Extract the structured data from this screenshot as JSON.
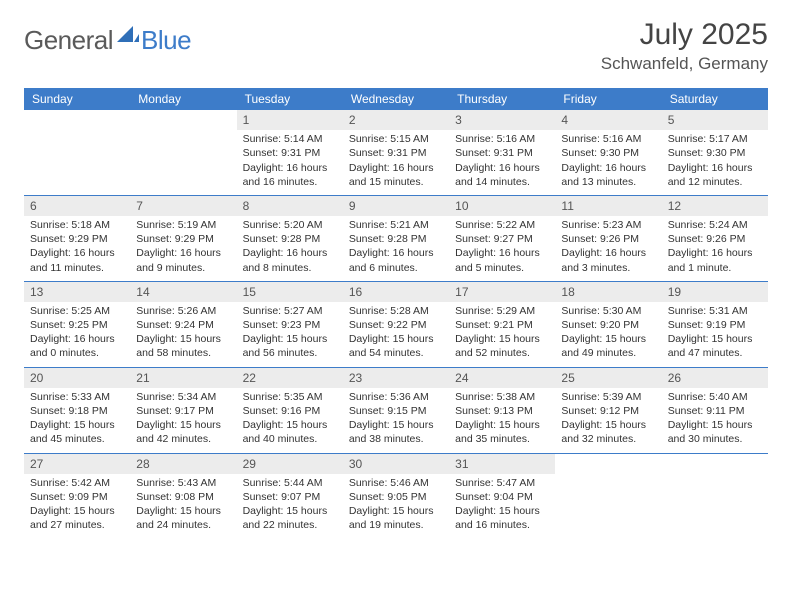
{
  "brand": {
    "part1": "General",
    "part2": "Blue"
  },
  "title": "July 2025",
  "location": "Schwanfeld, Germany",
  "colors": {
    "header_bg": "#3d7cc9",
    "header_text": "#ffffff",
    "daynum_bg": "#ececec",
    "border": "#3d7cc9",
    "text": "#333333"
  },
  "dayNames": [
    "Sunday",
    "Monday",
    "Tuesday",
    "Wednesday",
    "Thursday",
    "Friday",
    "Saturday"
  ],
  "weeks": [
    [
      null,
      null,
      {
        "n": "1",
        "sr": "5:14 AM",
        "ss": "9:31 PM",
        "dl": "16 hours and 16 minutes."
      },
      {
        "n": "2",
        "sr": "5:15 AM",
        "ss": "9:31 PM",
        "dl": "16 hours and 15 minutes."
      },
      {
        "n": "3",
        "sr": "5:16 AM",
        "ss": "9:31 PM",
        "dl": "16 hours and 14 minutes."
      },
      {
        "n": "4",
        "sr": "5:16 AM",
        "ss": "9:30 PM",
        "dl": "16 hours and 13 minutes."
      },
      {
        "n": "5",
        "sr": "5:17 AM",
        "ss": "9:30 PM",
        "dl": "16 hours and 12 minutes."
      }
    ],
    [
      {
        "n": "6",
        "sr": "5:18 AM",
        "ss": "9:29 PM",
        "dl": "16 hours and 11 minutes."
      },
      {
        "n": "7",
        "sr": "5:19 AM",
        "ss": "9:29 PM",
        "dl": "16 hours and 9 minutes."
      },
      {
        "n": "8",
        "sr": "5:20 AM",
        "ss": "9:28 PM",
        "dl": "16 hours and 8 minutes."
      },
      {
        "n": "9",
        "sr": "5:21 AM",
        "ss": "9:28 PM",
        "dl": "16 hours and 6 minutes."
      },
      {
        "n": "10",
        "sr": "5:22 AM",
        "ss": "9:27 PM",
        "dl": "16 hours and 5 minutes."
      },
      {
        "n": "11",
        "sr": "5:23 AM",
        "ss": "9:26 PM",
        "dl": "16 hours and 3 minutes."
      },
      {
        "n": "12",
        "sr": "5:24 AM",
        "ss": "9:26 PM",
        "dl": "16 hours and 1 minute."
      }
    ],
    [
      {
        "n": "13",
        "sr": "5:25 AM",
        "ss": "9:25 PM",
        "dl": "16 hours and 0 minutes."
      },
      {
        "n": "14",
        "sr": "5:26 AM",
        "ss": "9:24 PM",
        "dl": "15 hours and 58 minutes."
      },
      {
        "n": "15",
        "sr": "5:27 AM",
        "ss": "9:23 PM",
        "dl": "15 hours and 56 minutes."
      },
      {
        "n": "16",
        "sr": "5:28 AM",
        "ss": "9:22 PM",
        "dl": "15 hours and 54 minutes."
      },
      {
        "n": "17",
        "sr": "5:29 AM",
        "ss": "9:21 PM",
        "dl": "15 hours and 52 minutes."
      },
      {
        "n": "18",
        "sr": "5:30 AM",
        "ss": "9:20 PM",
        "dl": "15 hours and 49 minutes."
      },
      {
        "n": "19",
        "sr": "5:31 AM",
        "ss": "9:19 PM",
        "dl": "15 hours and 47 minutes."
      }
    ],
    [
      {
        "n": "20",
        "sr": "5:33 AM",
        "ss": "9:18 PM",
        "dl": "15 hours and 45 minutes."
      },
      {
        "n": "21",
        "sr": "5:34 AM",
        "ss": "9:17 PM",
        "dl": "15 hours and 42 minutes."
      },
      {
        "n": "22",
        "sr": "5:35 AM",
        "ss": "9:16 PM",
        "dl": "15 hours and 40 minutes."
      },
      {
        "n": "23",
        "sr": "5:36 AM",
        "ss": "9:15 PM",
        "dl": "15 hours and 38 minutes."
      },
      {
        "n": "24",
        "sr": "5:38 AM",
        "ss": "9:13 PM",
        "dl": "15 hours and 35 minutes."
      },
      {
        "n": "25",
        "sr": "5:39 AM",
        "ss": "9:12 PM",
        "dl": "15 hours and 32 minutes."
      },
      {
        "n": "26",
        "sr": "5:40 AM",
        "ss": "9:11 PM",
        "dl": "15 hours and 30 minutes."
      }
    ],
    [
      {
        "n": "27",
        "sr": "5:42 AM",
        "ss": "9:09 PM",
        "dl": "15 hours and 27 minutes."
      },
      {
        "n": "28",
        "sr": "5:43 AM",
        "ss": "9:08 PM",
        "dl": "15 hours and 24 minutes."
      },
      {
        "n": "29",
        "sr": "5:44 AM",
        "ss": "9:07 PM",
        "dl": "15 hours and 22 minutes."
      },
      {
        "n": "30",
        "sr": "5:46 AM",
        "ss": "9:05 PM",
        "dl": "15 hours and 19 minutes."
      },
      {
        "n": "31",
        "sr": "5:47 AM",
        "ss": "9:04 PM",
        "dl": "15 hours and 16 minutes."
      },
      null,
      null
    ]
  ],
  "labels": {
    "sunrise": "Sunrise:",
    "sunset": "Sunset:",
    "daylight": "Daylight:"
  }
}
